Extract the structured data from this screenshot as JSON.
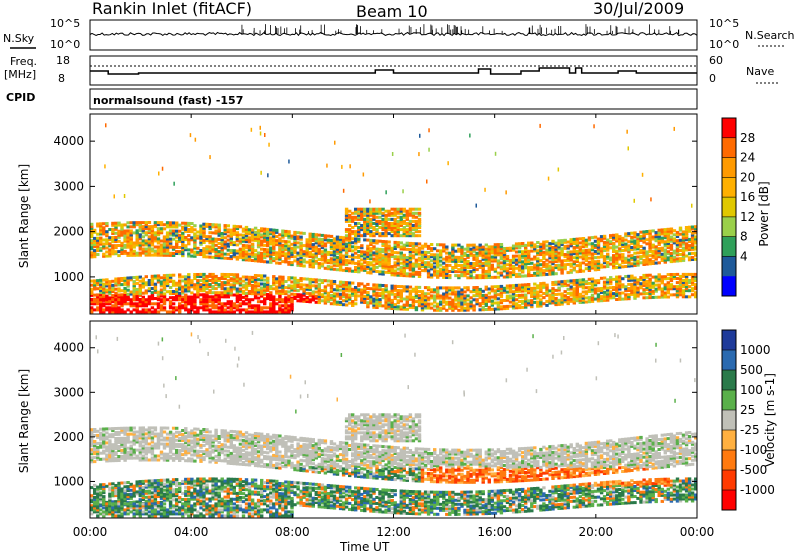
{
  "header": {
    "station": "Rankin Inlet (fitACF)",
    "beam": "Beam 10",
    "date": "30/Jul/2009"
  },
  "noise_panel": {
    "left_label": "N.Sky",
    "right_label": "N.Search",
    "left_ticks": [
      "10^5",
      "10^0"
    ],
    "right_ticks": [
      "10^5",
      "10^0"
    ]
  },
  "freq_panel": {
    "left_label_1": "Freq.",
    "left_label_2": "[MHz]",
    "left_ticks": [
      "18",
      "8"
    ],
    "right_label": "Nave",
    "right_ticks": [
      "60",
      "0"
    ]
  },
  "cpid_panel": {
    "label": "CPID",
    "text": "normalsound (fast) -157"
  },
  "x_axis": {
    "ticks": [
      "00:00",
      "04:00",
      "08:00",
      "12:00",
      "16:00",
      "20:00",
      "00:00"
    ],
    "label": "Time UT"
  },
  "chart_data": [
    {
      "type": "heatmap",
      "name": "power",
      "ylabel": "Slant Range [km]",
      "ylim": [
        180,
        4600
      ],
      "yticks": [
        "1000",
        "2000",
        "3000",
        "4000"
      ],
      "colorbar_label": "Power [dB]",
      "colorbar_ticks": [
        "28",
        "24",
        "20",
        "16",
        "12",
        "8",
        "4"
      ],
      "colorbar_colors": [
        "#ff0000",
        "#ff6a00",
        "#ff9a00",
        "#ffb000",
        "#e0c800",
        "#9ad04a",
        "#2fa05a",
        "#1e5a9a",
        "#0000ff"
      ]
    },
    {
      "type": "heatmap",
      "name": "velocity",
      "ylabel": "Slant Range [km]",
      "ylim": [
        180,
        4600
      ],
      "yticks": [
        "1000",
        "2000",
        "3000",
        "4000"
      ],
      "colorbar_label": "Velocity [m s-1]",
      "colorbar_ticks": [
        "1000",
        "500",
        "100",
        "25",
        "-25",
        "-100",
        "-500",
        "-1000"
      ],
      "colorbar_colors": [
        "#1e3a9a",
        "#2a6ab0",
        "#2a7a4a",
        "#5ab04a",
        "#c0c0b8",
        "#ffb040",
        "#ff7a10",
        "#ff3a00",
        "#ff0000"
      ]
    }
  ]
}
